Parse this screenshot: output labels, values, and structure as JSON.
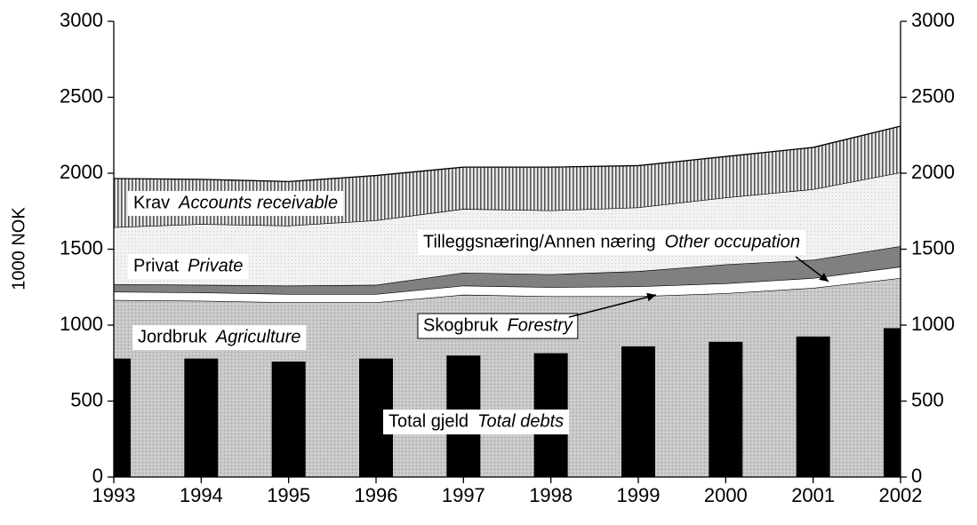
{
  "chart_data": {
    "type": "stacked_area_bar",
    "y_label": "1000 NOK",
    "x": [
      1993,
      1994,
      1995,
      1996,
      1997,
      1998,
      1999,
      2000,
      2001,
      2002
    ],
    "xlim": [
      1993,
      2002
    ],
    "ylim": [
      0,
      3000
    ],
    "yticks": [
      0,
      500,
      1000,
      1500,
      2000,
      2500,
      3000
    ],
    "y2lim": [
      0,
      3000
    ],
    "y2ticks": [
      0,
      500,
      1000,
      1500,
      2000,
      2500,
      3000
    ],
    "series": [
      {
        "name": "Jordbruk",
        "name_en": "Agriculture",
        "color": "#c4c4c4",
        "values": [
          1165,
          1160,
          1150,
          1150,
          1200,
          1190,
          1190,
          1210,
          1245,
          1310
        ]
      },
      {
        "name": "Skogbruk",
        "name_en": "Forestry",
        "color": "#ffffff",
        "values": [
          55,
          55,
          55,
          55,
          60,
          60,
          65,
          65,
          65,
          75
        ]
      },
      {
        "name": "Tilleggsnæring/Annen næring",
        "name_en": "Other occupation",
        "color": "#808080",
        "values": [
          50,
          50,
          55,
          60,
          85,
          85,
          100,
          125,
          120,
          135
        ]
      },
      {
        "name": "Privat",
        "name_en": "Private",
        "color": "#eeeeee",
        "values": [
          375,
          400,
          395,
          425,
          420,
          420,
          420,
          440,
          465,
          485
        ]
      },
      {
        "name": "Krav",
        "name_en": "Accounts receivable",
        "color": "#a0a0a0",
        "values": [
          320,
          295,
          290,
          295,
          275,
          285,
          275,
          270,
          275,
          305
        ]
      }
    ],
    "bars": {
      "name": "Total gjeld",
      "name_en": "Total debts",
      "color": "#000000",
      "values": [
        780,
        780,
        760,
        780,
        800,
        815,
        860,
        890,
        925,
        980
      ]
    }
  }
}
